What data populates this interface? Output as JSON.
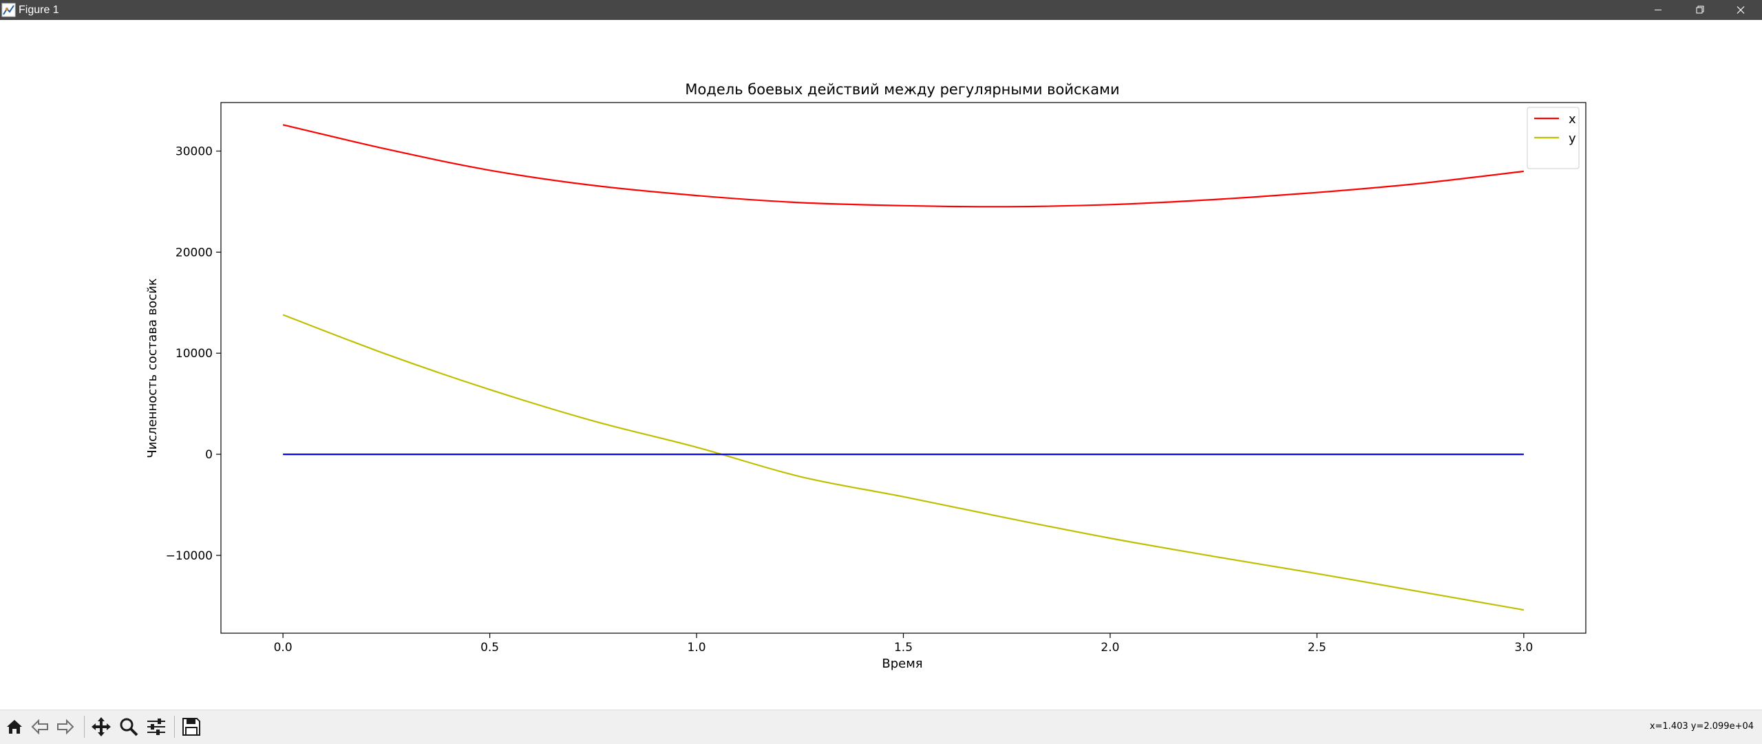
{
  "window": {
    "title": "Figure 1",
    "controls": {
      "minimize": "minimize-icon",
      "maximize": "restore-icon",
      "close": "close-icon"
    }
  },
  "toolbar": {
    "buttons": [
      {
        "name": "home-button",
        "icon": "home-icon"
      },
      {
        "name": "back-button",
        "icon": "arrow-left-icon"
      },
      {
        "name": "forward-button",
        "icon": "arrow-right-icon"
      },
      {
        "name": "pan-button",
        "icon": "move-icon"
      },
      {
        "name": "zoom-button",
        "icon": "magnifier-icon"
      },
      {
        "name": "configure-subplots-button",
        "icon": "sliders-icon"
      },
      {
        "name": "save-button",
        "icon": "floppy-disk-icon"
      }
    ],
    "coordinates": "x=1.403 y=2.099e+04"
  },
  "chart_data": {
    "type": "line",
    "title": "Модель боевых действий между регулярными войсками",
    "xlabel": "Время",
    "ylabel": "Численность состава восйк",
    "xlim": [
      -0.15,
      3.15
    ],
    "ylim": [
      -17700,
      34800
    ],
    "xticks": [
      0.0,
      0.5,
      1.0,
      1.5,
      2.0,
      2.5,
      3.0
    ],
    "xtick_labels": [
      "0.0",
      "0.5",
      "1.0",
      "1.5",
      "2.0",
      "2.5",
      "3.0"
    ],
    "yticks": [
      -10000,
      0,
      10000,
      20000,
      30000
    ],
    "ytick_labels": [
      "−10000",
      "0",
      "10000",
      "20000",
      "30000"
    ],
    "grid": false,
    "legend_position": "top-right",
    "series": [
      {
        "name": "x",
        "color": "#ff0000",
        "x": [
          0.0,
          0.25,
          0.5,
          0.75,
          1.0,
          1.25,
          1.5,
          1.75,
          2.0,
          2.25,
          2.5,
          2.75,
          3.0
        ],
        "y": [
          32600,
          30200,
          28100,
          26600,
          25600,
          24900,
          24600,
          24500,
          24700,
          25200,
          25900,
          26800,
          28000
        ]
      },
      {
        "name": "y",
        "color": "#bfbf00",
        "x": [
          0.0,
          0.25,
          0.5,
          0.75,
          1.0,
          1.25,
          1.5,
          1.75,
          2.0,
          2.25,
          2.5,
          2.75,
          3.0
        ],
        "y": [
          13800,
          9900,
          6400,
          3300,
          700,
          -2200,
          -4200,
          -6300,
          -8300,
          -10100,
          -11800,
          -13600,
          -15400
        ]
      },
      {
        "color": "#0000ff",
        "x": [
          0.0,
          3.0
        ],
        "y": [
          0,
          0
        ]
      }
    ]
  }
}
